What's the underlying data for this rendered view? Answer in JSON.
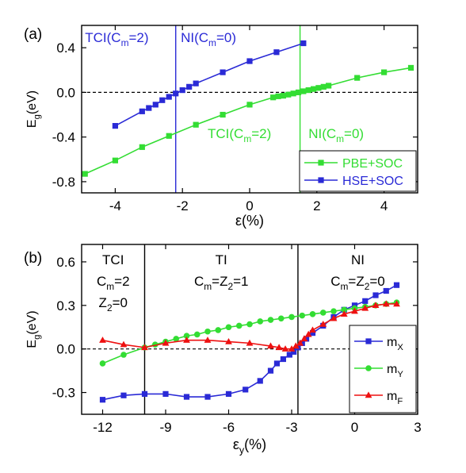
{
  "chart_data": [
    {
      "type": "line",
      "panel_label": "(a)",
      "xlabel": "ε(%)",
      "ylabel_main": "E",
      "ylabel_sub": "g",
      "ylabel_rest": "(eV)",
      "xlim": [
        -5,
        5
      ],
      "ylim": [
        -0.9,
        0.6
      ],
      "xticks": [
        -4,
        -2,
        0,
        2,
        4
      ],
      "yticks": [
        -0.8,
        -0.4,
        0.0,
        0.4
      ],
      "ytick_labels": [
        "-0.8",
        "-0.4",
        "0.0",
        "0.4"
      ],
      "zero_line": 0.0,
      "vlines": [
        {
          "x": -2.2,
          "color": "#2a2ad6"
        },
        {
          "x": 1.5,
          "color": "#33dd33"
        }
      ],
      "legend_position": "bottom-right",
      "annotations": [
        {
          "text_a": "TCI(C",
          "sub": "m",
          "text_b": "=2)",
          "color": "#2a2ad6",
          "x": -4.9,
          "y": 0.5
        },
        {
          "text_a": "NI(C",
          "sub": "m",
          "text_b": "=0)",
          "color": "#2a2ad6",
          "x": -2.05,
          "y": 0.5
        },
        {
          "text_a": "TCI(C",
          "sub": "m",
          "text_b": "=2)",
          "color": "#33dd33",
          "x": -1.25,
          "y": -0.36
        },
        {
          "text_a": "NI(C",
          "sub": "m",
          "text_b": "=0)",
          "color": "#33dd33",
          "x": 1.75,
          "y": -0.36
        }
      ],
      "series": [
        {
          "name": "PBE+SOC",
          "color": "#33dd33",
          "marker": "square",
          "x": [
            -4.9,
            -4.0,
            -3.2,
            -2.4,
            -1.6,
            -0.8,
            0.0,
            0.7,
            0.85,
            1.0,
            1.15,
            1.3,
            1.45,
            1.6,
            1.75,
            1.9,
            2.05,
            2.2,
            2.35,
            3.2,
            4.0,
            4.8
          ],
          "y": [
            -0.73,
            -0.61,
            -0.49,
            -0.39,
            -0.29,
            -0.2,
            -0.11,
            -0.045,
            -0.035,
            -0.03,
            -0.02,
            -0.01,
            0.0,
            0.01,
            0.02,
            0.03,
            0.04,
            0.05,
            0.06,
            0.13,
            0.18,
            0.22
          ]
        },
        {
          "name": "HSE+SOC",
          "color": "#2a2ad6",
          "marker": "square",
          "x": [
            -4.0,
            -3.2,
            -3.0,
            -2.8,
            -2.6,
            -2.4,
            -2.2,
            -2.0,
            -1.8,
            -1.6,
            -0.8,
            0.0,
            0.8,
            1.6
          ],
          "y": [
            -0.3,
            -0.17,
            -0.14,
            -0.11,
            -0.07,
            -0.04,
            -0.01,
            0.02,
            0.05,
            0.08,
            0.18,
            0.28,
            0.36,
            0.44
          ]
        }
      ]
    },
    {
      "type": "line",
      "panel_label": "(b)",
      "xlabel_main": "ε",
      "xlabel_sub": "y",
      "xlabel_rest": "(%)",
      "ylabel_main": "E",
      "ylabel_sub": "g",
      "ylabel_rest": "(eV)",
      "xlim": [
        -13,
        3
      ],
      "ylim": [
        -0.45,
        0.72
      ],
      "xticks": [
        -12,
        -9,
        -6,
        -3,
        0,
        3
      ],
      "yticks": [
        -0.3,
        0.0,
        0.3,
        0.6
      ],
      "ytick_labels": [
        "-0.3",
        "0.0",
        "0.3",
        "0.6"
      ],
      "zero_line": 0.0,
      "vlines": [
        {
          "x": -10.0,
          "color": "#000000"
        },
        {
          "x": -2.7,
          "color": "#000000"
        }
      ],
      "legend_position": "bottom-right",
      "annotations": [
        {
          "lines": [
            {
              "text_a": "TCI",
              "sub": "",
              "text_b": ""
            },
            {
              "text_a": "C",
              "sub": "m",
              "text_b": "=2"
            },
            {
              "text_a": "Z",
              "sub": "2",
              "text_b": "=0"
            }
          ],
          "x": -11.5
        },
        {
          "lines": [
            {
              "text_a": "TI",
              "sub": "",
              "text_b": ""
            },
            {
              "text_a": "C",
              "sub": "m",
              "text_b": "=Z",
              "sub2": "2",
              "text_c": "=1"
            }
          ],
          "x": -6.35
        },
        {
          "lines": [
            {
              "text_a": "NI",
              "sub": "",
              "text_b": ""
            },
            {
              "text_a": "C",
              "sub": "m",
              "text_b": "=Z",
              "sub2": "2",
              "text_c": "=0"
            }
          ],
          "x": 0.15
        }
      ],
      "series": [
        {
          "name_main": "m",
          "name_sub": "X",
          "color": "#2a2ad6",
          "marker": "square",
          "x": [
            -12.0,
            -11.0,
            -10.0,
            -9.0,
            -8.0,
            -7.0,
            -6.0,
            -5.2,
            -4.5,
            -4.0,
            -3.7,
            -3.4,
            -3.1,
            -2.9,
            -2.7,
            -2.5,
            -2.3,
            -2.0,
            -1.5,
            -1.0,
            -0.5,
            0.0,
            0.5,
            1.0,
            1.5,
            2.0
          ],
          "y": [
            -0.35,
            -0.32,
            -0.31,
            -0.31,
            -0.33,
            -0.33,
            -0.31,
            -0.28,
            -0.22,
            -0.15,
            -0.1,
            -0.07,
            -0.04,
            -0.02,
            0.01,
            0.04,
            0.07,
            0.11,
            0.16,
            0.22,
            0.27,
            0.3,
            0.33,
            0.37,
            0.4,
            0.44
          ]
        },
        {
          "name_main": "m",
          "name_sub": "Y",
          "color": "#33dd33",
          "marker": "circle",
          "x": [
            -12.0,
            -11.0,
            -10.0,
            -9.5,
            -9.0,
            -8.5,
            -8.0,
            -7.5,
            -7.0,
            -6.5,
            -6.0,
            -5.5,
            -5.0,
            -4.5,
            -4.0,
            -3.5,
            -3.0,
            -2.5,
            -2.0,
            -1.5,
            -1.0,
            -0.5,
            0.0,
            0.5,
            1.0,
            1.5,
            2.0
          ],
          "y": [
            -0.1,
            -0.04,
            0.01,
            0.03,
            0.05,
            0.07,
            0.09,
            0.1,
            0.12,
            0.13,
            0.15,
            0.16,
            0.17,
            0.19,
            0.2,
            0.21,
            0.22,
            0.23,
            0.24,
            0.25,
            0.26,
            0.27,
            0.28,
            0.29,
            0.3,
            0.31,
            0.32
          ]
        },
        {
          "name_main": "m",
          "name_sub": "F",
          "color": "#ee1111",
          "marker": "triangle",
          "x": [
            -12.0,
            -11.0,
            -10.0,
            -9.0,
            -8.0,
            -7.0,
            -6.0,
            -5.0,
            -4.0,
            -3.6,
            -3.3,
            -3.0,
            -2.8,
            -2.6,
            -2.4,
            -2.2,
            -2.0,
            -1.5,
            -1.0,
            -0.5,
            0.0,
            0.5,
            1.0,
            1.5,
            2.0
          ],
          "y": [
            0.06,
            0.03,
            0.01,
            0.04,
            0.06,
            0.06,
            0.05,
            0.04,
            0.02,
            0.01,
            0.0,
            0.0,
            0.02,
            0.04,
            0.07,
            0.1,
            0.13,
            0.17,
            0.21,
            0.24,
            0.26,
            0.28,
            0.3,
            0.31,
            0.31
          ]
        }
      ]
    }
  ]
}
